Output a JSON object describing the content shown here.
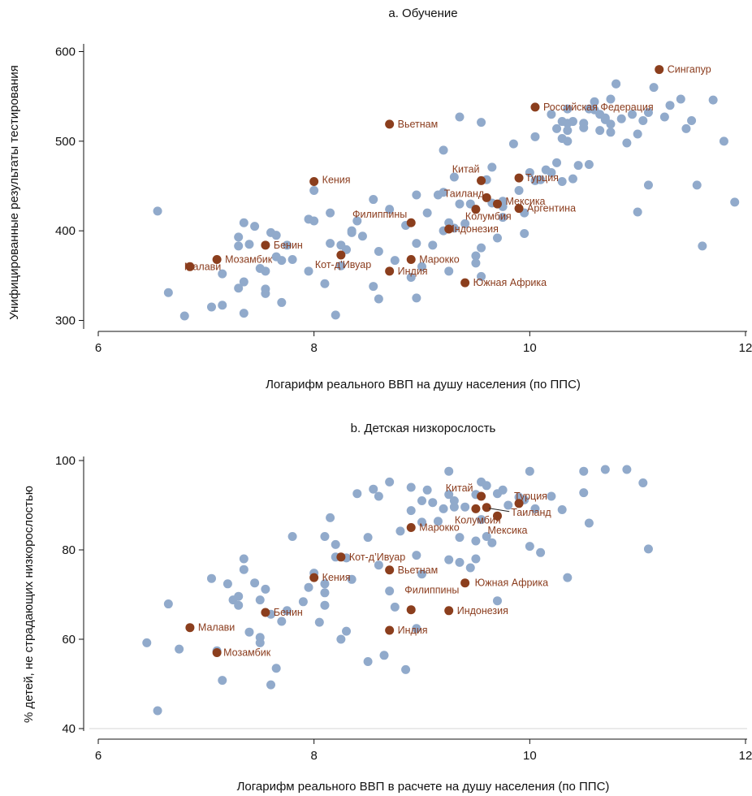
{
  "colors": {
    "regular_point": "#91aacb",
    "highlight_point": "#8b3e1d",
    "annotation_text": "#8a3b1c",
    "axis": "#111111"
  },
  "chart_data": [
    {
      "type": "scatter",
      "title": "a. Обучение",
      "xlabel": "Логарифм реального ВВП на душу населения (по ППС)",
      "ylabel": "Унифицированные результаты тестирования",
      "xlim": [
        6,
        12
      ],
      "ylim": [
        290,
        610
      ],
      "xticks": [
        6,
        8,
        10,
        12
      ],
      "yticks": [
        300,
        400,
        500,
        600
      ],
      "grid": false,
      "points": [
        [
          6.55,
          422
        ],
        [
          6.65,
          331
        ],
        [
          6.8,
          305
        ],
        [
          7.05,
          315
        ],
        [
          7.15,
          317
        ],
        [
          7.15,
          352
        ],
        [
          7.3,
          383
        ],
        [
          7.3,
          393
        ],
        [
          7.3,
          336
        ],
        [
          7.35,
          409
        ],
        [
          7.35,
          343
        ],
        [
          7.35,
          308
        ],
        [
          7.4,
          385
        ],
        [
          7.45,
          405
        ],
        [
          7.5,
          358
        ],
        [
          7.55,
          335
        ],
        [
          7.55,
          330
        ],
        [
          7.55,
          355
        ],
        [
          7.6,
          398
        ],
        [
          7.65,
          371
        ],
        [
          7.7,
          367
        ],
        [
          7.7,
          320
        ],
        [
          7.75,
          384
        ],
        [
          7.8,
          368
        ],
        [
          7.95,
          355
        ],
        [
          8.0,
          445
        ],
        [
          8.0,
          411
        ],
        [
          8.1,
          341
        ],
        [
          8.15,
          386
        ],
        [
          8.15,
          420
        ],
        [
          8.2,
          306
        ],
        [
          8.25,
          361
        ],
        [
          8.3,
          379
        ],
        [
          8.35,
          400
        ],
        [
          8.35,
          398
        ],
        [
          8.4,
          411
        ],
        [
          8.45,
          394
        ],
        [
          8.55,
          435
        ],
        [
          8.55,
          338
        ],
        [
          8.6,
          377
        ],
        [
          8.6,
          324
        ],
        [
          8.7,
          424
        ],
        [
          8.75,
          367
        ],
        [
          8.85,
          406
        ],
        [
          8.9,
          348
        ],
        [
          8.95,
          386
        ],
        [
          8.95,
          325
        ],
        [
          8.95,
          440
        ],
        [
          9.0,
          360
        ],
        [
          9.05,
          420
        ],
        [
          9.1,
          384
        ],
        [
          9.15,
          440
        ],
        [
          9.2,
          490
        ],
        [
          9.2,
          443
        ],
        [
          9.25,
          355
        ],
        [
          9.25,
          409
        ],
        [
          9.3,
          460
        ],
        [
          9.3,
          403
        ],
        [
          9.35,
          527
        ],
        [
          9.35,
          430
        ],
        [
          9.4,
          408
        ],
        [
          9.45,
          430
        ],
        [
          9.5,
          364
        ],
        [
          9.5,
          372
        ],
        [
          9.55,
          521
        ],
        [
          9.55,
          381
        ],
        [
          9.55,
          349
        ],
        [
          9.6,
          457
        ],
        [
          9.65,
          471
        ],
        [
          9.65,
          431
        ],
        [
          9.7,
          392
        ],
        [
          9.75,
          427
        ],
        [
          9.75,
          415
        ],
        [
          9.85,
          497
        ],
        [
          9.9,
          445
        ],
        [
          9.95,
          397
        ],
        [
          9.95,
          420
        ],
        [
          10.0,
          465
        ],
        [
          10.05,
          456
        ],
        [
          10.05,
          505
        ],
        [
          10.1,
          457
        ],
        [
          10.15,
          468
        ],
        [
          10.2,
          530
        ],
        [
          10.2,
          465
        ],
        [
          10.25,
          514
        ],
        [
          10.25,
          476
        ],
        [
          10.3,
          522
        ],
        [
          10.3,
          503
        ],
        [
          10.35,
          536
        ],
        [
          10.35,
          520
        ],
        [
          10.35,
          512
        ],
        [
          10.35,
          500
        ],
        [
          10.4,
          458
        ],
        [
          10.4,
          522
        ],
        [
          10.45,
          473
        ],
        [
          10.5,
          515
        ],
        [
          10.5,
          520
        ],
        [
          10.55,
          474
        ],
        [
          10.55,
          536
        ],
        [
          10.6,
          544
        ],
        [
          10.6,
          535
        ],
        [
          10.65,
          512
        ],
        [
          10.65,
          530
        ],
        [
          10.7,
          526
        ],
        [
          10.7,
          524
        ],
        [
          10.75,
          547
        ],
        [
          10.75,
          510
        ],
        [
          10.75,
          519
        ],
        [
          10.8,
          564
        ],
        [
          10.8,
          564
        ],
        [
          10.85,
          525
        ],
        [
          10.9,
          498
        ],
        [
          10.95,
          530
        ],
        [
          11.0,
          508
        ],
        [
          11.0,
          421
        ],
        [
          11.05,
          523
        ],
        [
          11.1,
          451
        ],
        [
          11.1,
          532
        ],
        [
          11.15,
          560
        ],
        [
          11.25,
          527
        ],
        [
          11.3,
          540
        ],
        [
          11.4,
          547
        ],
        [
          11.45,
          514
        ],
        [
          11.5,
          523
        ],
        [
          11.55,
          451
        ],
        [
          11.6,
          383
        ],
        [
          11.7,
          546
        ],
        [
          11.8,
          500
        ],
        [
          11.9,
          432
        ],
        [
          9.75,
          433
        ],
        [
          9.2,
          400
        ],
        [
          10.3,
          455
        ],
        [
          8.25,
          384
        ],
        [
          7.95,
          413
        ],
        [
          7.65,
          395
        ]
      ],
      "highlighted": [
        {
          "label": "Сингапур",
          "x": 11.2,
          "y": 580
        },
        {
          "label": "Российская Федерация",
          "x": 10.05,
          "y": 538
        },
        {
          "label": "Вьетнам",
          "x": 8.7,
          "y": 519
        },
        {
          "label": "Кения",
          "x": 8.0,
          "y": 455
        },
        {
          "label": "Китай",
          "x": 9.55,
          "y": 456
        },
        {
          "label": "Турция",
          "x": 9.9,
          "y": 459
        },
        {
          "label": "Таиланд",
          "x": 9.6,
          "y": 437
        },
        {
          "label": "Мексика",
          "x": 9.7,
          "y": 430
        },
        {
          "label": "Аргентина",
          "x": 9.9,
          "y": 425
        },
        {
          "label": "Колумбия",
          "x": 9.5,
          "y": 424
        },
        {
          "label": "Филиппины",
          "x": 8.9,
          "y": 409
        },
        {
          "label": "Индонезия",
          "x": 9.25,
          "y": 402
        },
        {
          "label": "Бенин",
          "x": 7.55,
          "y": 384
        },
        {
          "label": "Мозамбик",
          "x": 7.1,
          "y": 368
        },
        {
          "label": "Кот-д’Ивуар",
          "x": 8.25,
          "y": 373
        },
        {
          "label": "Марокко",
          "x": 8.9,
          "y": 368
        },
        {
          "label": "Малави",
          "x": 6.85,
          "y": 360
        },
        {
          "label": "Индия",
          "x": 8.7,
          "y": 355
        },
        {
          "label": "Южная Африка",
          "x": 9.4,
          "y": 342
        }
      ]
    },
    {
      "type": "scatter",
      "title": "b. Детская низкорослость",
      "xlabel": "Логарифм реального ВВП в расчете на душу населения (по ППС)",
      "ylabel": "% детей, не страдающих низкорослостью",
      "xlim": [
        6,
        12
      ],
      "ylim": [
        38,
        102
      ],
      "xticks": [
        6,
        8,
        10,
        12
      ],
      "yticks": [
        40,
        60,
        80,
        100
      ],
      "grid": false,
      "points": [
        [
          6.45,
          59.2
        ],
        [
          6.55,
          44.0
        ],
        [
          6.65,
          67.9
        ],
        [
          6.75,
          57.8
        ],
        [
          7.05,
          73.6
        ],
        [
          7.1,
          57.4
        ],
        [
          7.15,
          50.8
        ],
        [
          7.2,
          72.4
        ],
        [
          7.25,
          68.8
        ],
        [
          7.3,
          69.6
        ],
        [
          7.3,
          67.6
        ],
        [
          7.35,
          78.0
        ],
        [
          7.35,
          75.6
        ],
        [
          7.4,
          61.6
        ],
        [
          7.45,
          72.6
        ],
        [
          7.5,
          60.4
        ],
        [
          7.5,
          59.2
        ],
        [
          7.5,
          68.8
        ],
        [
          7.55,
          71.2
        ],
        [
          7.6,
          49.8
        ],
        [
          7.6,
          65.6
        ],
        [
          7.65,
          53.5
        ],
        [
          7.7,
          64.0
        ],
        [
          7.75,
          66.4
        ],
        [
          7.8,
          83.0
        ],
        [
          7.9,
          68.4
        ],
        [
          7.95,
          71.6
        ],
        [
          8.0,
          74.8
        ],
        [
          8.05,
          63.8
        ],
        [
          8.1,
          72.4
        ],
        [
          8.1,
          67.6
        ],
        [
          8.1,
          83.0
        ],
        [
          8.1,
          70.4
        ],
        [
          8.15,
          87.2
        ],
        [
          8.2,
          81.2
        ],
        [
          8.2,
          78.4
        ],
        [
          8.25,
          60.0
        ],
        [
          8.3,
          61.8
        ],
        [
          8.35,
          73.4
        ],
        [
          8.4,
          92.6
        ],
        [
          8.5,
          55.0
        ],
        [
          8.5,
          82.8
        ],
        [
          8.55,
          93.6
        ],
        [
          8.6,
          92.0
        ],
        [
          8.65,
          56.4
        ],
        [
          8.7,
          95.2
        ],
        [
          8.7,
          70.8
        ],
        [
          8.75,
          67.2
        ],
        [
          8.8,
          84.2
        ],
        [
          8.85,
          53.2
        ],
        [
          8.9,
          88.8
        ],
        [
          8.9,
          94.0
        ],
        [
          8.95,
          62.4
        ],
        [
          8.95,
          78.8
        ],
        [
          9.0,
          74.6
        ],
        [
          9.0,
          91.0
        ],
        [
          9.05,
          93.4
        ],
        [
          9.1,
          90.6
        ],
        [
          9.15,
          86.4
        ],
        [
          9.2,
          89.2
        ],
        [
          9.25,
          97.6
        ],
        [
          9.25,
          92.4
        ],
        [
          9.25,
          77.8
        ],
        [
          9.3,
          91.0
        ],
        [
          9.3,
          89.6
        ],
        [
          9.35,
          77.2
        ],
        [
          9.35,
          82.8
        ],
        [
          9.4,
          89.6
        ],
        [
          9.45,
          76.0
        ],
        [
          9.5,
          92.4
        ],
        [
          9.5,
          78.0
        ],
        [
          9.55,
          95.2
        ],
        [
          9.55,
          86.8
        ],
        [
          9.6,
          83.0
        ],
        [
          9.6,
          94.4
        ],
        [
          9.65,
          81.6
        ],
        [
          9.7,
          68.6
        ],
        [
          9.7,
          92.6
        ],
        [
          9.75,
          93.4
        ],
        [
          9.8,
          90.0
        ],
        [
          9.9,
          91.8
        ],
        [
          9.95,
          91.2
        ],
        [
          10.0,
          80.8
        ],
        [
          10.0,
          97.6
        ],
        [
          10.05,
          89.2
        ],
        [
          10.1,
          79.4
        ],
        [
          10.2,
          92.0
        ],
        [
          10.3,
          89.0
        ],
        [
          10.35,
          73.8
        ],
        [
          10.5,
          92.8
        ],
        [
          10.5,
          97.6
        ],
        [
          10.55,
          86.0
        ],
        [
          10.7,
          98.0
        ],
        [
          10.9,
          98.0
        ],
        [
          11.05,
          95.0
        ],
        [
          11.1,
          80.2
        ],
        [
          9.0,
          86.2
        ],
        [
          8.6,
          76.6
        ],
        [
          9.5,
          82.0
        ],
        [
          8.3,
          78.2
        ]
      ],
      "highlighted": [
        {
          "label": "Китай",
          "x": 9.55,
          "y": 92.0
        },
        {
          "label": "Турция",
          "x": 9.9,
          "y": 90.4
        },
        {
          "label": "Таиланд",
          "x": 9.6,
          "y": 89.5
        },
        {
          "label": "Колумбия",
          "x": 9.5,
          "y": 89.2
        },
        {
          "label": "Мексика",
          "x": 9.7,
          "y": 87.6
        },
        {
          "label": "Марокко",
          "x": 8.9,
          "y": 85.0
        },
        {
          "label": "Кот-д’Ивуар",
          "x": 8.25,
          "y": 78.4
        },
        {
          "label": "Вьетнам",
          "x": 8.7,
          "y": 75.5
        },
        {
          "label": "Кения",
          "x": 8.0,
          "y": 73.8
        },
        {
          "label": "Южная Африка",
          "x": 9.4,
          "y": 72.6
        },
        {
          "label": "Филиппины",
          "x": 8.9,
          "y": 66.6
        },
        {
          "label": "Индонезия",
          "x": 9.25,
          "y": 66.4
        },
        {
          "label": "Бенин",
          "x": 7.55,
          "y": 66.0
        },
        {
          "label": "Малави",
          "x": 6.85,
          "y": 62.6
        },
        {
          "label": "Индия",
          "x": 8.7,
          "y": 62.0
        },
        {
          "label": "Мозамбик",
          "x": 7.1,
          "y": 57.0
        }
      ]
    }
  ]
}
